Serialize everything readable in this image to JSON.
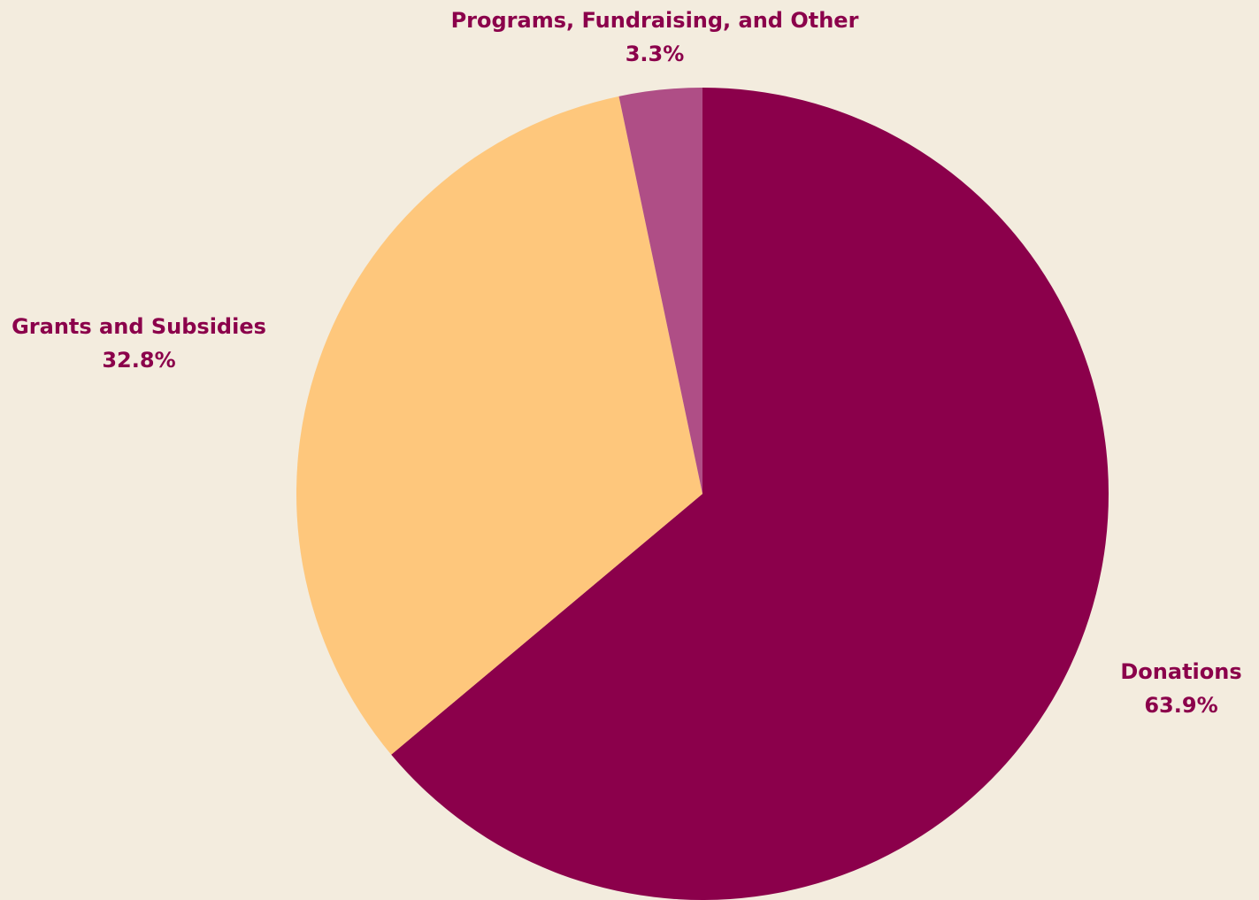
{
  "chart_data": {
    "type": "pie",
    "title": "",
    "start_angle_deg": 0,
    "direction": "clockwise",
    "label_color": "#8B004B",
    "background_color": "#F3ECDE",
    "slices": [
      {
        "label": "Donations",
        "value": 63.9,
        "value_text": "63.9%",
        "color": "#8B004B"
      },
      {
        "label": "Grants and Subsidies",
        "value": 32.8,
        "value_text": "32.8%",
        "color": "#FEC77C"
      },
      {
        "label": "Programs, Fundraising, and Other",
        "value": 3.3,
        "value_text": "3.3%",
        "color": "#AF4E86"
      }
    ]
  }
}
